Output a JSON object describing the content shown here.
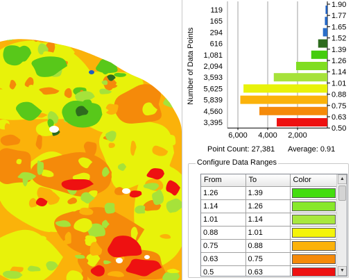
{
  "chart_data": {
    "type": "bar",
    "orientation": "horizontal",
    "ylabel": "Number of Data Points",
    "x_ticks": [
      "6,000",
      "4,000",
      "2,000"
    ],
    "x_tick_values": [
      6000,
      4000,
      2000
    ],
    "xlim": [
      0,
      6700
    ],
    "x_reversed": true,
    "grid": true,
    "bins": [
      {
        "count_label": "119",
        "count": 119,
        "upper": "1.90",
        "color": "#1f5fbf"
      },
      {
        "count_label": "165",
        "count": 165,
        "upper": "1.77",
        "color": "#2466c4"
      },
      {
        "count_label": "294",
        "count": 294,
        "upper": "1.65",
        "color": "#2a6ec8"
      },
      {
        "count_label": "616",
        "count": 616,
        "upper": "1.52",
        "color": "#2e6b1e"
      },
      {
        "count_label": "1,081",
        "count": 1081,
        "upper": "1.39",
        "color": "#44cc0e"
      },
      {
        "count_label": "2,094",
        "count": 2094,
        "upper": "1.26",
        "color": "#80dd22"
      },
      {
        "count_label": "3,593",
        "count": 3593,
        "upper": "1.14",
        "color": "#a6e23a"
      },
      {
        "count_label": "5,625",
        "count": 5625,
        "upper": "1.01",
        "color": "#e8f20a"
      },
      {
        "count_label": "5,839",
        "count": 5839,
        "upper": "0.88",
        "color": "#fbb20a"
      },
      {
        "count_label": "4,560",
        "count": 4560,
        "upper": "0.75",
        "color": "#f58a0a"
      },
      {
        "count_label": "3,395",
        "count": 3395,
        "upper": "0.63",
        "color": "#ee1111"
      }
    ],
    "lowest_bound": "0.50"
  },
  "stats": {
    "point_count": "Point Count: 27,381",
    "average": "Average: 0.91"
  },
  "config": {
    "legend": "Configure Data Ranges",
    "columns": {
      "from": "From",
      "to": "To",
      "color": "Color"
    },
    "rows": [
      {
        "from": "1.26",
        "to": "1.39",
        "color": "#44dd0e"
      },
      {
        "from": "1.14",
        "to": "1.26",
        "color": "#88e82a"
      },
      {
        "from": "1.01",
        "to": "1.14",
        "color": "#a8e83e"
      },
      {
        "from": "0.88",
        "to": "1.01",
        "color": "#f4f40a"
      },
      {
        "from": "0.75",
        "to": "0.88",
        "color": "#fbb20a"
      },
      {
        "from": "0.63",
        "to": "0.75",
        "color": "#f58a0a"
      },
      {
        "from": "0.5",
        "to": "0.63",
        "color": "#ee1111"
      }
    ]
  },
  "map_colors": {
    "red": "#ee1111",
    "orange": "#f58a0a",
    "light_orange": "#fbb20a",
    "yellow": "#e8f20a",
    "light_green": "#a6e23a",
    "green": "#58c81a",
    "dark_green": "#2e6b1e",
    "blue": "#1f5fbf"
  }
}
